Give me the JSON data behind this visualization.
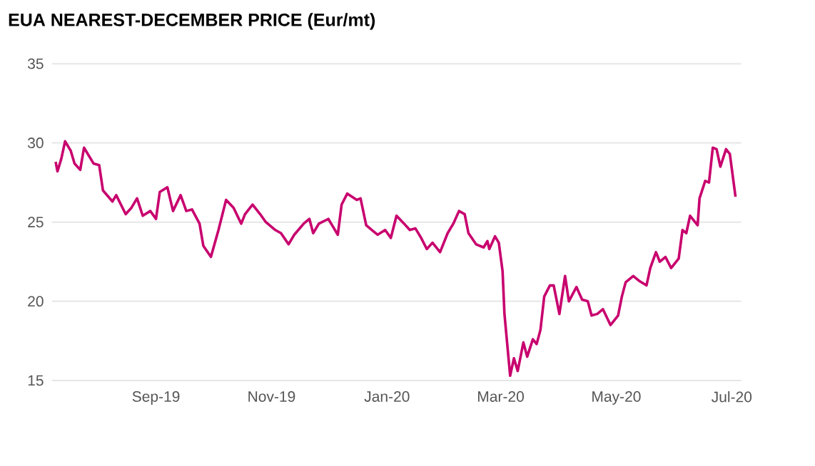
{
  "chart_data": {
    "type": "line",
    "title": "EUA NEAREST-DECEMBER PRICE (Eur/mt)",
    "x": [
      "2019-07-10",
      "2019-07-11",
      "2019-07-13",
      "2019-07-15",
      "2019-07-18",
      "2019-07-20",
      "2019-07-23",
      "2019-07-25",
      "2019-07-30",
      "2019-08-02",
      "2019-08-04",
      "2019-08-09",
      "2019-08-11",
      "2019-08-16",
      "2019-08-19",
      "2019-08-22",
      "2019-08-25",
      "2019-08-29",
      "2019-09-01",
      "2019-09-03",
      "2019-09-07",
      "2019-09-10",
      "2019-09-14",
      "2019-09-17",
      "2019-09-20",
      "2019-09-24",
      "2019-09-26",
      "2019-09-30",
      "2019-10-04",
      "2019-10-08",
      "2019-10-12",
      "2019-10-16",
      "2019-10-18",
      "2019-10-22",
      "2019-10-26",
      "2019-10-29",
      "2019-11-03",
      "2019-11-06",
      "2019-11-10",
      "2019-11-13",
      "2019-11-18",
      "2019-11-21",
      "2019-11-23",
      "2019-11-26",
      "2019-12-01",
      "2019-12-03",
      "2019-12-06",
      "2019-12-08",
      "2019-12-11",
      "2019-12-16",
      "2019-12-18",
      "2019-12-21",
      "2019-12-24",
      "2019-12-27",
      "2019-12-31",
      "2020-01-03",
      "2020-01-06",
      "2020-01-10",
      "2020-01-13",
      "2020-01-16",
      "2020-01-19",
      "2020-01-22",
      "2020-01-25",
      "2020-01-29",
      "2020-02-02",
      "2020-02-05",
      "2020-02-08",
      "2020-02-11",
      "2020-02-13",
      "2020-02-17",
      "2020-02-21",
      "2020-02-23",
      "2020-02-24",
      "2020-02-27",
      "2020-02-29",
      "2020-03-02",
      "2020-03-03",
      "2020-03-06",
      "2020-03-08",
      "2020-03-10",
      "2020-03-13",
      "2020-03-15",
      "2020-03-18",
      "2020-03-20",
      "2020-03-22",
      "2020-03-24",
      "2020-03-27",
      "2020-03-29",
      "2020-04-01",
      "2020-04-04",
      "2020-04-06",
      "2020-04-10",
      "2020-04-13",
      "2020-04-16",
      "2020-04-18",
      "2020-04-21",
      "2020-04-24",
      "2020-04-28",
      "2020-05-02",
      "2020-05-04",
      "2020-05-06",
      "2020-05-10",
      "2020-05-13",
      "2020-05-17",
      "2020-05-19",
      "2020-05-22",
      "2020-05-24",
      "2020-05-27",
      "2020-05-30",
      "2020-06-03",
      "2020-06-05",
      "2020-06-07",
      "2020-06-09",
      "2020-06-13",
      "2020-06-14",
      "2020-06-17",
      "2020-06-19",
      "2020-06-21",
      "2020-06-23",
      "2020-06-25",
      "2020-06-28",
      "2020-06-30",
      "2020-07-03"
    ],
    "series": [
      {
        "color": "#c8006e",
        "values": [
          28.8,
          28.2,
          29.0,
          30.1,
          29.5,
          28.7,
          28.3,
          29.7,
          28.7,
          28.6,
          27.0,
          26.3,
          26.7,
          25.5,
          25.9,
          26.5,
          25.4,
          25.7,
          25.2,
          26.9,
          27.2,
          25.7,
          26.7,
          25.7,
          25.8,
          24.9,
          23.5,
          22.8,
          24.5,
          26.4,
          25.9,
          24.9,
          25.5,
          26.1,
          25.5,
          25.0,
          24.5,
          24.3,
          23.6,
          24.2,
          24.9,
          25.2,
          24.3,
          24.9,
          25.2,
          24.8,
          24.2,
          26.1,
          26.8,
          26.4,
          26.5,
          24.8,
          24.5,
          24.2,
          24.5,
          24.0,
          25.4,
          24.9,
          24.5,
          24.6,
          24.0,
          23.3,
          23.7,
          23.1,
          24.3,
          24.9,
          25.7,
          25.5,
          24.3,
          23.6,
          23.4,
          23.8,
          23.3,
          24.1,
          23.7,
          21.9,
          19.2,
          15.3,
          16.4,
          15.6,
          17.4,
          16.5,
          17.6,
          17.3,
          18.2,
          20.3,
          21.0,
          21.0,
          19.2,
          21.6,
          20.0,
          20.9,
          20.1,
          20.0,
          19.1,
          19.2,
          19.5,
          18.5,
          19.1,
          20.3,
          21.2,
          21.6,
          21.3,
          21.0,
          22.1,
          23.1,
          22.5,
          22.8,
          22.1,
          22.7,
          24.5,
          24.3,
          25.4,
          24.8,
          26.5,
          27.6,
          27.5,
          29.7,
          29.6,
          28.5,
          29.6,
          29.3,
          26.6
        ]
      }
    ],
    "xlim": [
      "2019-07-08",
      "2020-07-06"
    ],
    "xticks": [
      {
        "value": "2019-09-01",
        "label": "Sep-19"
      },
      {
        "value": "2019-11-01",
        "label": "Nov-19"
      },
      {
        "value": "2020-01-01",
        "label": "Jan-20"
      },
      {
        "value": "2020-03-01",
        "label": "Mar-20"
      },
      {
        "value": "2020-05-01",
        "label": "May-20"
      },
      {
        "value": "2020-07-01",
        "label": "Jul-20"
      }
    ],
    "ylim": [
      15,
      35
    ],
    "yticks": [
      15,
      20,
      25,
      30,
      35
    ],
    "grid": "y",
    "marker": "none",
    "line_style": "solid"
  }
}
